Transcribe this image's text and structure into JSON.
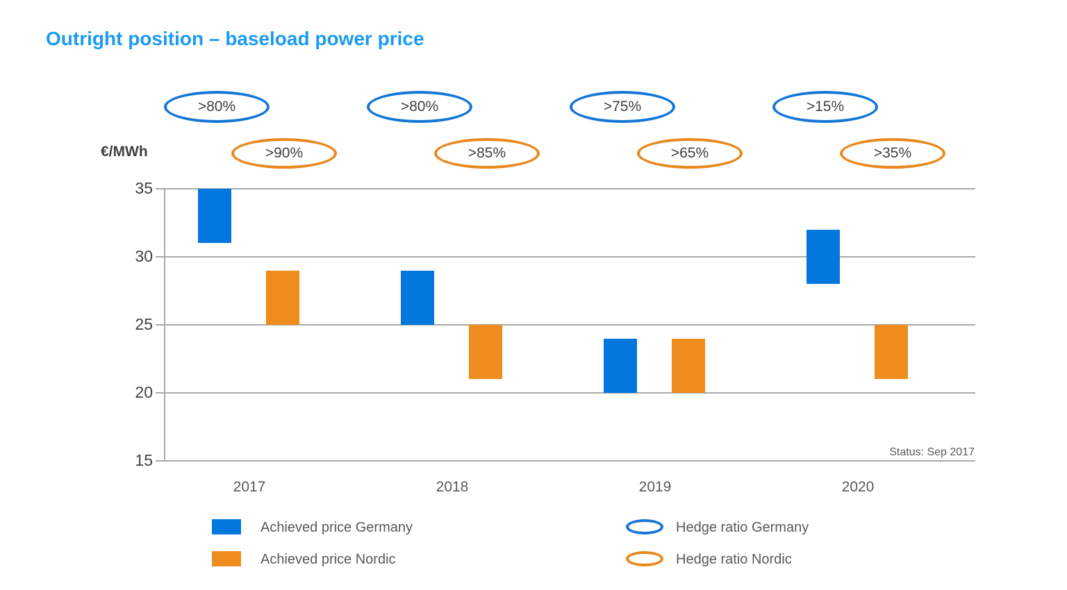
{
  "page": {
    "title": "Outright position – baseload power price",
    "y_axis_unit": "€/MWh",
    "status_note": "Status: Sep 2017"
  },
  "colors": {
    "title": "#1b9bf0",
    "germany": "#0277dd",
    "nordic": "#ee8c1e",
    "hedge_germany_stroke": "#1476d6",
    "hedge_nordic_stroke": "#e8881e",
    "grid": "#a9a9a9",
    "tick_text": "#404040",
    "legend_text": "#595959"
  },
  "chart_data": {
    "type": "bar",
    "subtype": "floating-range-bars",
    "title": "Outright position – baseload power price",
    "xlabel": "",
    "ylabel": "€/MWh",
    "ylim": [
      15,
      35
    ],
    "yticks": [
      35,
      30,
      25,
      20,
      15
    ],
    "grid": "horizontal",
    "categories": [
      "2017",
      "2018",
      "2019",
      "2020"
    ],
    "series": [
      {
        "name": "Achieved price Germany",
        "color_key": "germany",
        "ranges": [
          [
            31,
            35
          ],
          [
            25,
            29
          ],
          [
            20,
            24
          ],
          [
            28,
            32
          ]
        ]
      },
      {
        "name": "Achieved price Nordic",
        "color_key": "nordic",
        "ranges": [
          [
            25,
            29
          ],
          [
            21,
            25
          ],
          [
            20,
            24
          ],
          [
            21,
            25
          ]
        ]
      }
    ],
    "hedge_ratio_labels": {
      "germany": [
        ">80%",
        ">80%",
        ">75%",
        ">15%"
      ],
      "nordic": [
        ">90%",
        ">85%",
        ">65%",
        ">35%"
      ]
    },
    "annotations": [
      "Status: Sep 2017"
    ],
    "legend_position": "bottom",
    "legend": [
      {
        "label": "Achieved price Germany",
        "marker": "square",
        "color_key": "germany"
      },
      {
        "label": "Achieved price Nordic",
        "marker": "square",
        "color_key": "nordic"
      },
      {
        "label": "Hedge ratio Germany",
        "marker": "ellipse",
        "color_key": "hedge_germany_stroke"
      },
      {
        "label": "Hedge ratio Nordic",
        "marker": "ellipse",
        "color_key": "hedge_nordic_stroke"
      }
    ]
  }
}
